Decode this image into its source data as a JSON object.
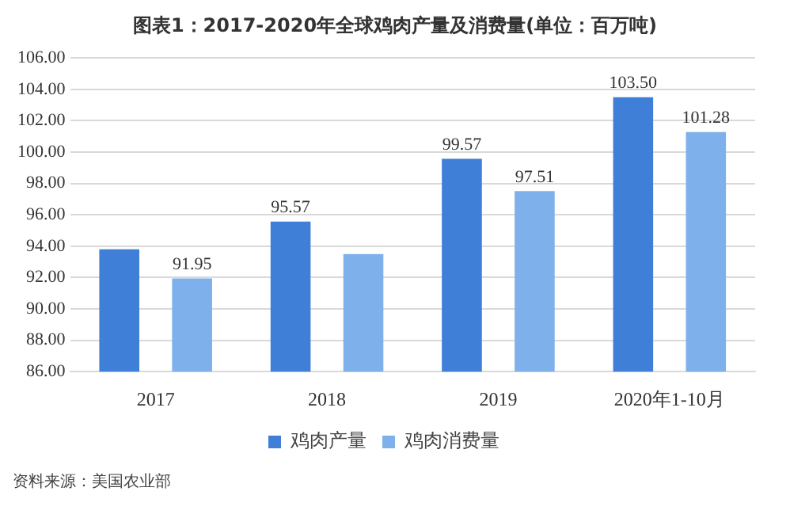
{
  "chart_data": {
    "type": "bar",
    "title": "图表1：2017-2020年全球鸡肉产量及消费量(单位：百万吨)",
    "categories": [
      "2017",
      "2018",
      "2019",
      "2020年1-10月"
    ],
    "series": [
      {
        "name": "鸡肉产量",
        "color": "#3f7fd8",
        "values": [
          93.8,
          95.57,
          99.57,
          103.5
        ],
        "value_labels": [
          null,
          "95.57",
          "99.57",
          "103.50"
        ]
      },
      {
        "name": "鸡肉消费量",
        "color": "#7eb1ec",
        "values": [
          91.95,
          93.5,
          97.51,
          101.28
        ],
        "value_labels": [
          "91.95",
          null,
          "97.51",
          "101.28"
        ]
      }
    ],
    "ylim": [
      86,
      106
    ],
    "yticks": [
      {
        "value": 86,
        "label": "86.00"
      },
      {
        "value": 88,
        "label": "88.00"
      },
      {
        "value": 90,
        "label": "90.00"
      },
      {
        "value": 92,
        "label": "92.00"
      },
      {
        "value": 94,
        "label": "94.00"
      },
      {
        "value": 96,
        "label": "96.00"
      },
      {
        "value": 98,
        "label": "98.00"
      },
      {
        "value": 100,
        "label": "100.00"
      },
      {
        "value": 102,
        "label": "102.00"
      },
      {
        "value": 104,
        "label": "104.00"
      },
      {
        "value": 106,
        "label": "106.00"
      }
    ],
    "grid": "y",
    "legend": "bottom",
    "annotations": [
      "资料来源：美国农业部"
    ]
  }
}
